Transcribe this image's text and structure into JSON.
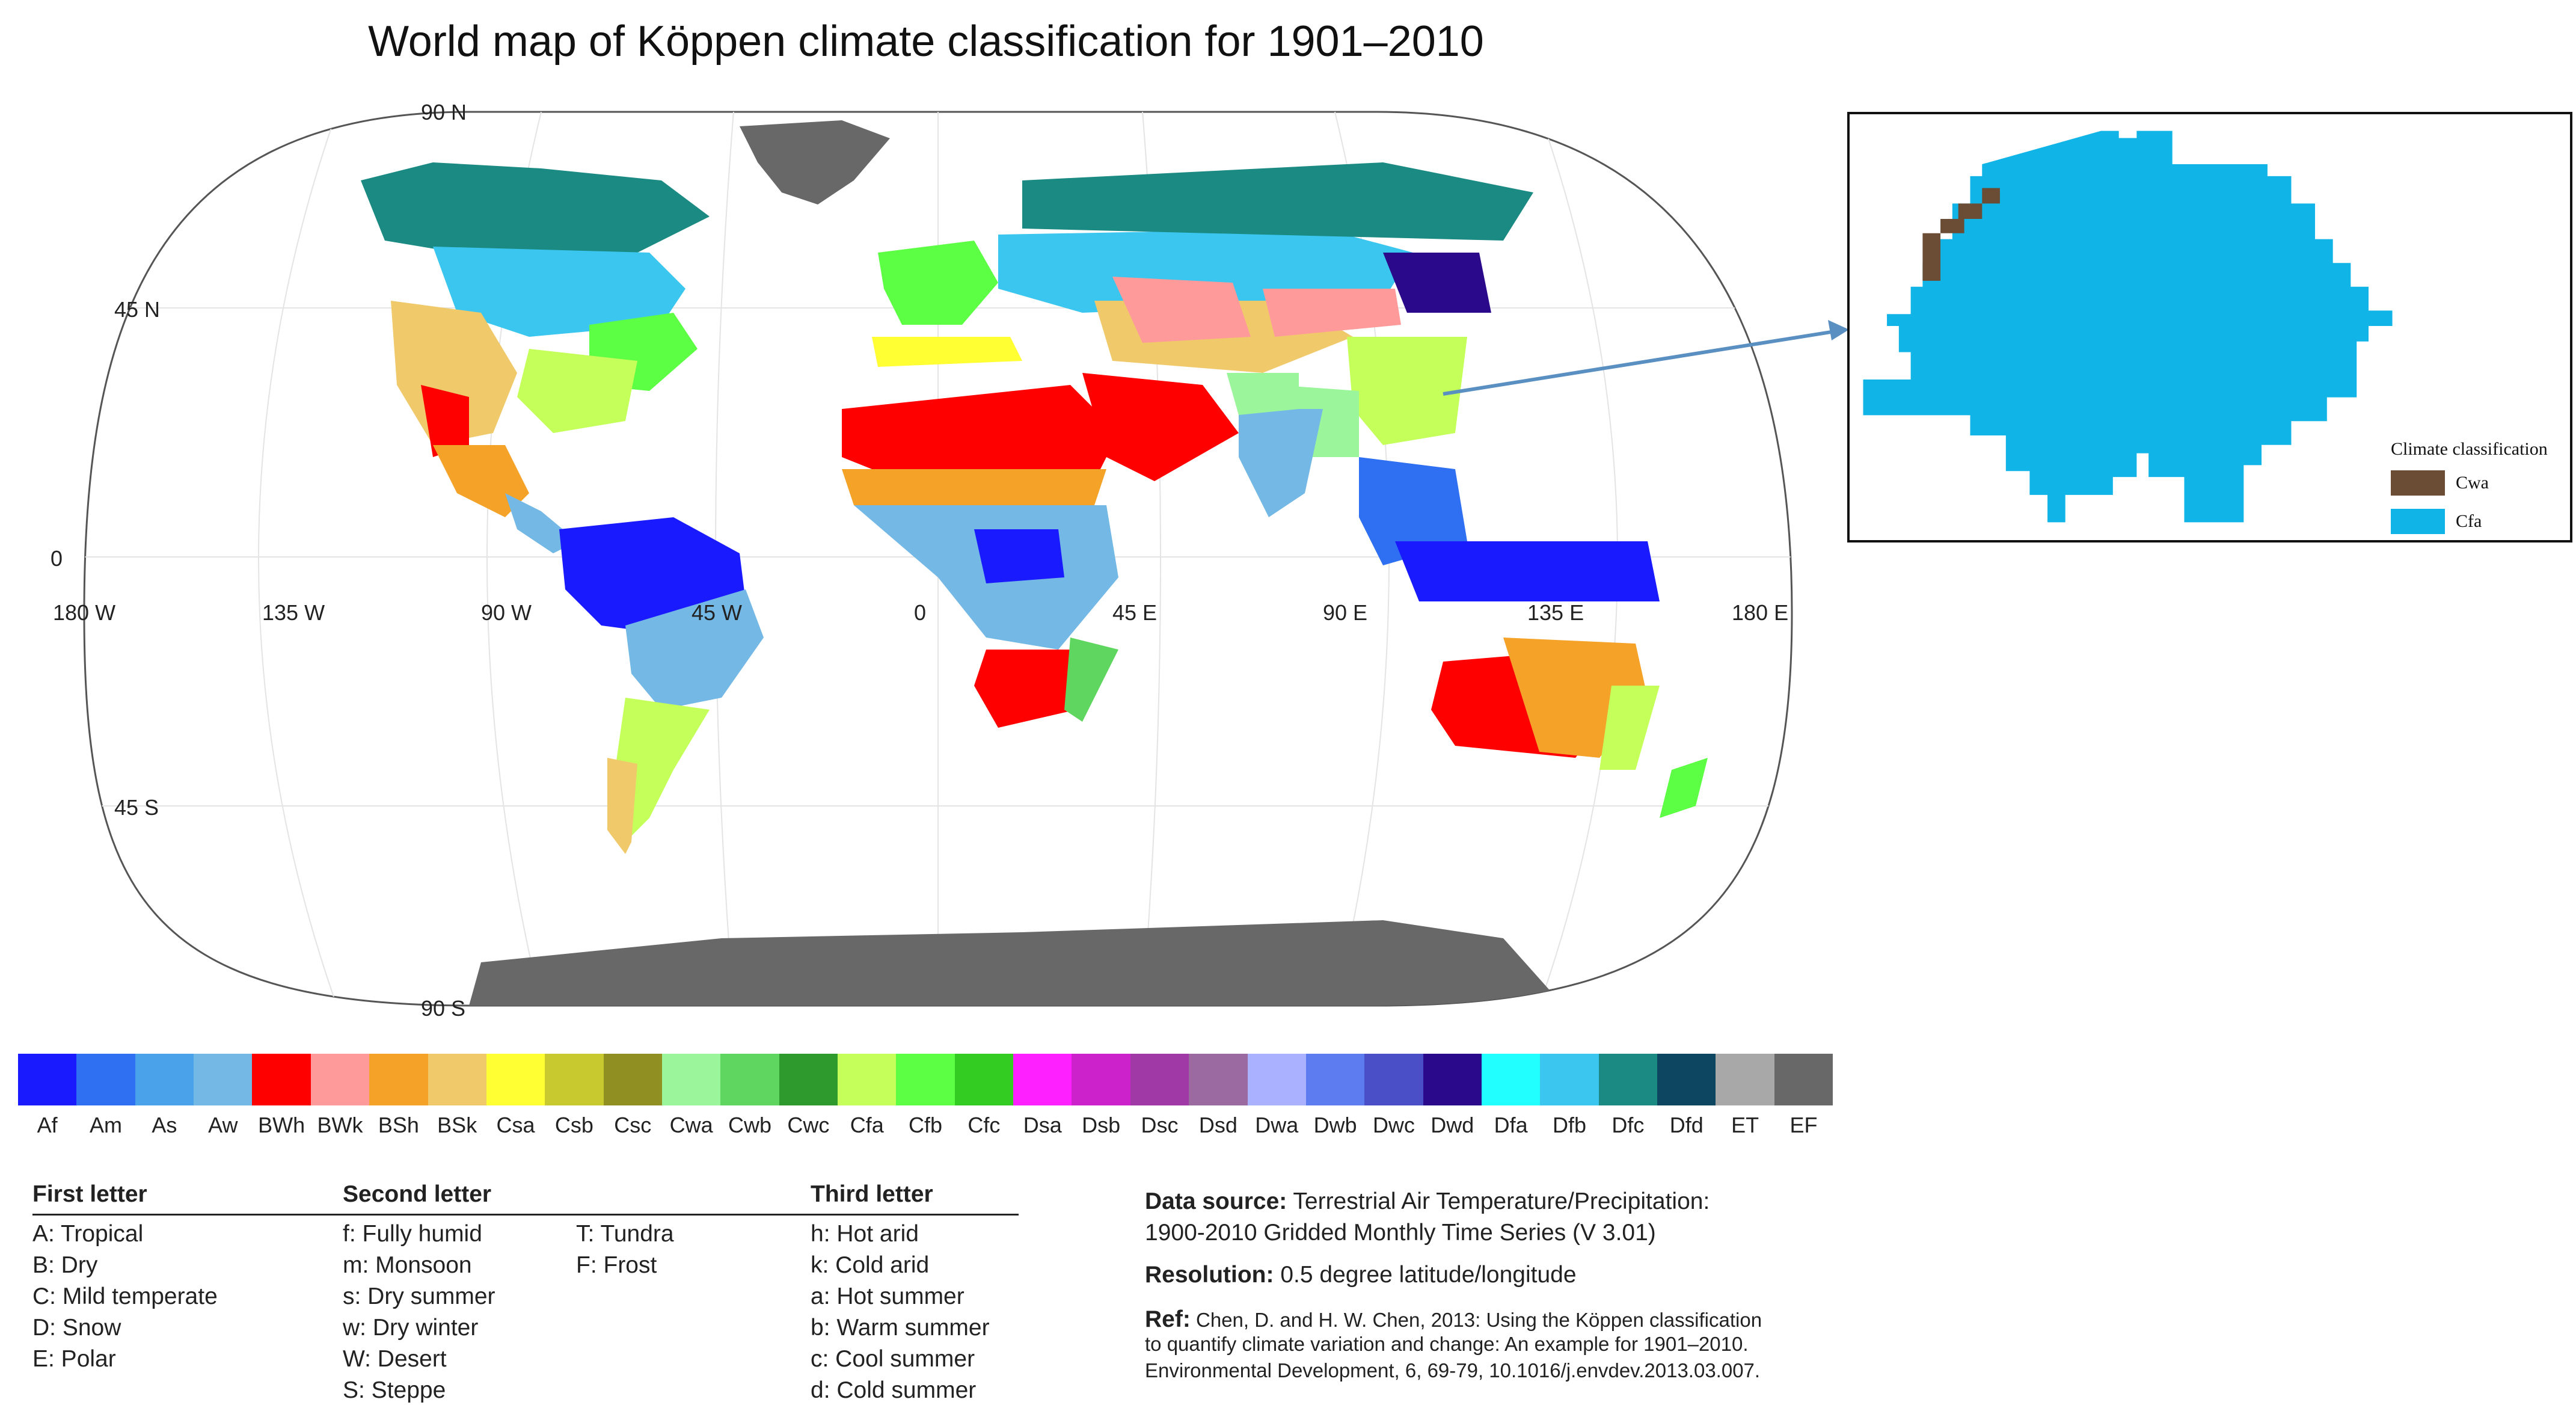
{
  "title": "World map of Köppen climate classification for 1901–2010",
  "map": {
    "latitude_labels": [
      "90 N",
      "45 N",
      "0",
      "45 S",
      "90 S"
    ],
    "longitude_labels": [
      "180 W",
      "135 W",
      "90 W",
      "45 W",
      "0",
      "45 E",
      "90 E",
      "135 E",
      "180 E"
    ]
  },
  "inset": {
    "legend_title": "Climate classification",
    "items": [
      {
        "code": "Cwa",
        "color": "#6b4c35"
      },
      {
        "code": "Cfa",
        "color": "#11b4e6"
      }
    ]
  },
  "classes": [
    {
      "code": "Af",
      "color": "#1a1aff"
    },
    {
      "code": "Am",
      "color": "#2f6ff2"
    },
    {
      "code": "As",
      "color": "#4aa2ea"
    },
    {
      "code": "Aw",
      "color": "#74b8e6"
    },
    {
      "code": "BWh",
      "color": "#ff0000"
    },
    {
      "code": "BWk",
      "color": "#ff9a9a"
    },
    {
      "code": "BSh",
      "color": "#f5a229"
    },
    {
      "code": "BSk",
      "color": "#f0c96a"
    },
    {
      "code": "Csa",
      "color": "#ffff33"
    },
    {
      "code": "Csb",
      "color": "#c8c92f"
    },
    {
      "code": "Csc",
      "color": "#8f8f22"
    },
    {
      "code": "Cwa",
      "color": "#9bf59b"
    },
    {
      "code": "Cwb",
      "color": "#5fd65f"
    },
    {
      "code": "Cwc",
      "color": "#2e9a2e"
    },
    {
      "code": "Cfa",
      "color": "#c4ff5a"
    },
    {
      "code": "Cfb",
      "color": "#5cff44"
    },
    {
      "code": "Cfc",
      "color": "#33cc22"
    },
    {
      "code": "Dsa",
      "color": "#ff20ff"
    },
    {
      "code": "Dsb",
      "color": "#cc22cc"
    },
    {
      "code": "Dsc",
      "color": "#a038a6"
    },
    {
      "code": "Dsd",
      "color": "#9a6aa0"
    },
    {
      "code": "Dwa",
      "color": "#aab2ff"
    },
    {
      "code": "Dwb",
      "color": "#5c7cf0"
    },
    {
      "code": "Dwc",
      "color": "#4a4fc8"
    },
    {
      "code": "Dwd",
      "color": "#2a0a8a"
    },
    {
      "code": "Dfa",
      "color": "#22ffff"
    },
    {
      "code": "Dfb",
      "color": "#3bc6f0"
    },
    {
      "code": "Dfc",
      "color": "#1a8a82"
    },
    {
      "code": "Dfd",
      "color": "#0c4660"
    },
    {
      "code": "ET",
      "color": "#a8a8a8"
    },
    {
      "code": "EF",
      "color": "#686868"
    }
  ],
  "legend": {
    "first_letter": {
      "heading": "First letter",
      "items": [
        "A:  Tropical",
        "B:  Dry",
        "C:  Mild temperate",
        "D:  Snow",
        "E:  Polar"
      ]
    },
    "second_letter": {
      "heading": "Second letter",
      "items_col1": [
        "f:   Fully humid",
        "m:  Monsoon",
        "s:   Dry summer",
        "w:  Dry winter",
        "W: Desert",
        "S:  Steppe"
      ],
      "items_col2": [
        "T:   Tundra",
        "F:   Frost"
      ]
    },
    "third_letter": {
      "heading": "Third letter",
      "items": [
        "h:   Hot arid",
        "k:   Cold arid",
        "a:   Hot summer",
        "b:   Warm summer",
        "c:   Cool summer",
        "d:   Cold summer"
      ]
    }
  },
  "source": {
    "data_label": "Data source:",
    "data_line1": "Terrestrial Air Temperature/Precipitation:",
    "data_line2": "1900-2010 Gridded Monthly Time Series (V 3.01)",
    "res_label": "Resolution:",
    "res_value": "0.5 degree latitude/longitude",
    "ref_label": "Ref:",
    "ref_line1": "Chen, D. and H. W. Chen, 2013: Using the Köppen classification",
    "ref_line2": "to quantify climate variation and change: An example for 1901–2010.",
    "ref_line3": "Environmental Development, 6, 69-79, 10.1016/j.envdev.2013.03.007."
  }
}
